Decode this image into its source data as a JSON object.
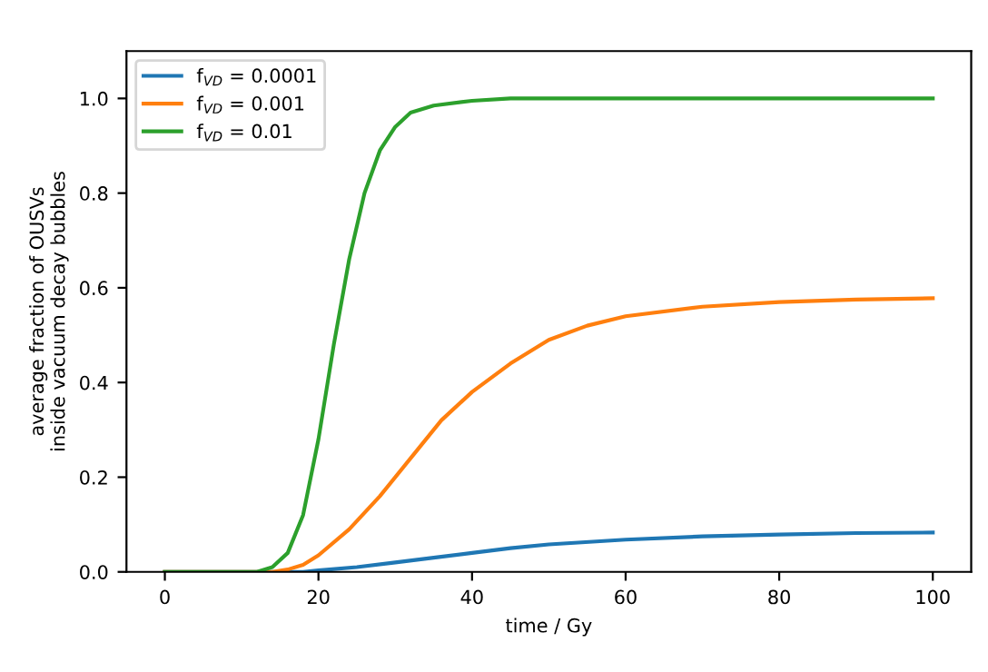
{
  "chart_data": {
    "type": "line",
    "xlabel": "time / Gy",
    "ylabel": "average fraction of OUSVs\ninside vacuum decay bubbles",
    "xlim": [
      -5,
      105
    ],
    "ylim": [
      0,
      1.1
    ],
    "xticks": [
      0,
      20,
      40,
      60,
      80,
      100
    ],
    "yticks": [
      {
        "value": 0,
        "label": "0.0"
      },
      0.2,
      0.4,
      0.6,
      0.8,
      {
        "value": 1,
        "label": "1.0"
      }
    ],
    "legend": "top left",
    "grid": false,
    "series": [
      {
        "name": "f$_{VD}$ = 0.0001",
        "color": "#1f77b4",
        "x": [
          0,
          10,
          18,
          20,
          25,
          30,
          35,
          40,
          45,
          50,
          60,
          70,
          80,
          90,
          100
        ],
        "values": [
          0,
          0,
          0,
          0.003,
          0.01,
          0.02,
          0.03,
          0.04,
          0.05,
          0.058,
          0.068,
          0.075,
          0.079,
          0.082,
          0.083
        ]
      },
      {
        "name": "f$_{VD}$ = 0.001",
        "color": "#ff7f0e",
        "x": [
          0,
          10,
          14,
          16,
          18,
          20,
          24,
          28,
          32,
          36,
          40,
          45,
          50,
          55,
          60,
          70,
          80,
          90,
          100
        ],
        "values": [
          0,
          0,
          0,
          0.005,
          0.015,
          0.035,
          0.09,
          0.16,
          0.24,
          0.32,
          0.38,
          0.44,
          0.49,
          0.52,
          0.54,
          0.56,
          0.57,
          0.575,
          0.578
        ]
      },
      {
        "name": "f$_{VD}$ = 0.01",
        "color": "#2ca02c",
        "x": [
          0,
          10,
          12,
          14,
          16,
          18,
          20,
          22,
          24,
          26,
          28,
          30,
          32,
          35,
          40,
          45,
          60,
          80,
          100
        ],
        "values": [
          0,
          0,
          0,
          0.01,
          0.04,
          0.12,
          0.28,
          0.48,
          0.66,
          0.8,
          0.89,
          0.94,
          0.97,
          0.985,
          0.995,
          1.0,
          1.0,
          1.0,
          1.0
        ]
      }
    ]
  }
}
